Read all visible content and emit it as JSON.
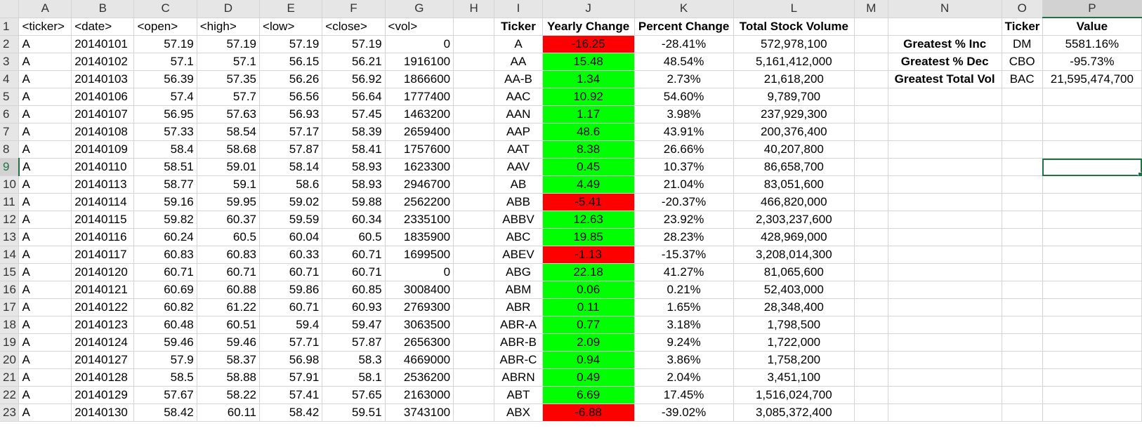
{
  "columns": [
    "A",
    "B",
    "C",
    "D",
    "E",
    "F",
    "G",
    "H",
    "I",
    "J",
    "K",
    "L",
    "M",
    "N",
    "O",
    "P"
  ],
  "header_row": {
    "num": "1",
    "A": "<ticker>",
    "B": "<date>",
    "C": "<open>",
    "D": "<high>",
    "E": "<low>",
    "F": "<close>",
    "G": "<vol>",
    "H": "",
    "I": "Ticker",
    "J": "Yearly Change",
    "K": "Percent Change",
    "L": "Total Stock Volume",
    "M": "",
    "N": "",
    "O": "Ticker",
    "P": "Value"
  },
  "rows": [
    {
      "num": "2",
      "A": "A",
      "B": "20140101",
      "C": "57.19",
      "D": "57.19",
      "E": "57.19",
      "F": "57.19",
      "G": "0",
      "I": "A",
      "J": "-16.25",
      "K": "-28.41%",
      "L": "572,978,100",
      "N": "Greatest % Inc",
      "O": "DM",
      "P": "5581.16%"
    },
    {
      "num": "3",
      "A": "A",
      "B": "20140102",
      "C": "57.1",
      "D": "57.1",
      "E": "56.15",
      "F": "56.21",
      "G": "1916100",
      "I": "AA",
      "J": "15.48",
      "K": "48.54%",
      "L": "5,161,412,000",
      "N": "Greatest % Dec",
      "O": "CBO",
      "P": "-95.73%"
    },
    {
      "num": "4",
      "A": "A",
      "B": "20140103",
      "C": "56.39",
      "D": "57.35",
      "E": "56.26",
      "F": "56.92",
      "G": "1866600",
      "I": "AA-B",
      "J": "1.34",
      "K": "2.73%",
      "L": "21,618,200",
      "N": "Greatest Total Vol",
      "O": "BAC",
      "P": "21,595,474,700"
    },
    {
      "num": "5",
      "A": "A",
      "B": "20140106",
      "C": "57.4",
      "D": "57.7",
      "E": "56.56",
      "F": "56.64",
      "G": "1777400",
      "I": "AAC",
      "J": "10.92",
      "K": "54.60%",
      "L": "9,789,700",
      "N": "",
      "O": "",
      "P": ""
    },
    {
      "num": "6",
      "A": "A",
      "B": "20140107",
      "C": "56.95",
      "D": "57.63",
      "E": "56.93",
      "F": "57.45",
      "G": "1463200",
      "I": "AAN",
      "J": "1.17",
      "K": "3.98%",
      "L": "237,929,300",
      "N": "",
      "O": "",
      "P": ""
    },
    {
      "num": "7",
      "A": "A",
      "B": "20140108",
      "C": "57.33",
      "D": "58.54",
      "E": "57.17",
      "F": "58.39",
      "G": "2659400",
      "I": "AAP",
      "J": "48.6",
      "K": "43.91%",
      "L": "200,376,400",
      "N": "",
      "O": "",
      "P": ""
    },
    {
      "num": "8",
      "A": "A",
      "B": "20140109",
      "C": "58.4",
      "D": "58.68",
      "E": "57.87",
      "F": "58.41",
      "G": "1757600",
      "I": "AAT",
      "J": "8.38",
      "K": "26.66%",
      "L": "40,207,800",
      "N": "",
      "O": "",
      "P": ""
    },
    {
      "num": "9",
      "A": "A",
      "B": "20140110",
      "C": "58.51",
      "D": "59.01",
      "E": "58.14",
      "F": "58.93",
      "G": "1623300",
      "I": "AAV",
      "J": "0.45",
      "K": "10.37%",
      "L": "86,658,700",
      "N": "",
      "O": "",
      "P": ""
    },
    {
      "num": "10",
      "A": "A",
      "B": "20140113",
      "C": "58.77",
      "D": "59.1",
      "E": "58.6",
      "F": "58.93",
      "G": "2946700",
      "I": "AB",
      "J": "4.49",
      "K": "21.04%",
      "L": "83,051,600",
      "N": "",
      "O": "",
      "P": ""
    },
    {
      "num": "11",
      "A": "A",
      "B": "20140114",
      "C": "59.16",
      "D": "59.95",
      "E": "59.02",
      "F": "59.88",
      "G": "2562200",
      "I": "ABB",
      "J": "-5.41",
      "K": "-20.37%",
      "L": "466,820,000",
      "N": "",
      "O": "",
      "P": ""
    },
    {
      "num": "12",
      "A": "A",
      "B": "20140115",
      "C": "59.82",
      "D": "60.37",
      "E": "59.59",
      "F": "60.34",
      "G": "2335100",
      "I": "ABBV",
      "J": "12.63",
      "K": "23.92%",
      "L": "2,303,237,600",
      "N": "",
      "O": "",
      "P": ""
    },
    {
      "num": "13",
      "A": "A",
      "B": "20140116",
      "C": "60.24",
      "D": "60.5",
      "E": "60.04",
      "F": "60.5",
      "G": "1835900",
      "I": "ABC",
      "J": "19.85",
      "K": "28.23%",
      "L": "428,969,000",
      "N": "",
      "O": "",
      "P": ""
    },
    {
      "num": "14",
      "A": "A",
      "B": "20140117",
      "C": "60.83",
      "D": "60.83",
      "E": "60.33",
      "F": "60.71",
      "G": "1699500",
      "I": "ABEV",
      "J": "-1.13",
      "K": "-15.37%",
      "L": "3,208,014,300",
      "N": "",
      "O": "",
      "P": ""
    },
    {
      "num": "15",
      "A": "A",
      "B": "20140120",
      "C": "60.71",
      "D": "60.71",
      "E": "60.71",
      "F": "60.71",
      "G": "0",
      "I": "ABG",
      "J": "22.18",
      "K": "41.27%",
      "L": "81,065,600",
      "N": "",
      "O": "",
      "P": ""
    },
    {
      "num": "16",
      "A": "A",
      "B": "20140121",
      "C": "60.69",
      "D": "60.88",
      "E": "59.86",
      "F": "60.85",
      "G": "3008400",
      "I": "ABM",
      "J": "0.06",
      "K": "0.21%",
      "L": "52,403,000",
      "N": "",
      "O": "",
      "P": ""
    },
    {
      "num": "17",
      "A": "A",
      "B": "20140122",
      "C": "60.82",
      "D": "61.22",
      "E": "60.71",
      "F": "60.93",
      "G": "2769300",
      "I": "ABR",
      "J": "0.11",
      "K": "1.65%",
      "L": "28,348,400",
      "N": "",
      "O": "",
      "P": ""
    },
    {
      "num": "18",
      "A": "A",
      "B": "20140123",
      "C": "60.48",
      "D": "60.51",
      "E": "59.4",
      "F": "59.47",
      "G": "3063500",
      "I": "ABR-A",
      "J": "0.77",
      "K": "3.18%",
      "L": "1,798,500",
      "N": "",
      "O": "",
      "P": ""
    },
    {
      "num": "19",
      "A": "A",
      "B": "20140124",
      "C": "59.46",
      "D": "59.46",
      "E": "57.71",
      "F": "57.87",
      "G": "2656300",
      "I": "ABR-B",
      "J": "2.09",
      "K": "9.24%",
      "L": "1,722,000",
      "N": "",
      "O": "",
      "P": ""
    },
    {
      "num": "20",
      "A": "A",
      "B": "20140127",
      "C": "57.9",
      "D": "58.37",
      "E": "56.98",
      "F": "58.3",
      "G": "4669000",
      "I": "ABR-C",
      "J": "0.94",
      "K": "3.86%",
      "L": "1,758,200",
      "N": "",
      "O": "",
      "P": ""
    },
    {
      "num": "21",
      "A": "A",
      "B": "20140128",
      "C": "58.5",
      "D": "58.88",
      "E": "57.91",
      "F": "58.1",
      "G": "2536200",
      "I": "ABRN",
      "J": "0.49",
      "K": "2.04%",
      "L": "3,451,100",
      "N": "",
      "O": "",
      "P": ""
    },
    {
      "num": "22",
      "A": "A",
      "B": "20140129",
      "C": "57.67",
      "D": "58.22",
      "E": "57.41",
      "F": "57.65",
      "G": "2163000",
      "I": "ABT",
      "J": "6.69",
      "K": "17.45%",
      "L": "1,516,024,700",
      "N": "",
      "O": "",
      "P": ""
    },
    {
      "num": "23",
      "A": "A",
      "B": "20140130",
      "C": "58.42",
      "D": "60.11",
      "E": "58.42",
      "F": "59.51",
      "G": "3743100",
      "I": "ABX",
      "J": "-6.88",
      "K": "-39.02%",
      "L": "3,085,372,400",
      "N": "",
      "O": "",
      "P": ""
    }
  ],
  "selected_cell": {
    "col": "P",
    "row": "9"
  },
  "colors": {
    "positive_fill": "#00ff00",
    "negative_fill": "#ff0000",
    "selection": "#217346"
  }
}
